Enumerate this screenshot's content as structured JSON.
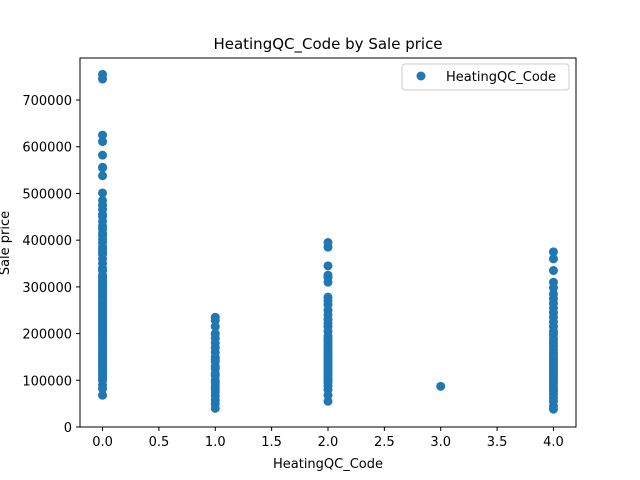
{
  "chart_data": {
    "type": "scatter",
    "title": "HeatingQC_Code by Sale price",
    "xlabel": "HeatingQC_Code",
    "ylabel": "Sale price",
    "xlim": [
      -0.2,
      4.2
    ],
    "ylim": [
      0,
      790000
    ],
    "xticks": [
      0.0,
      0.5,
      1.0,
      1.5,
      2.0,
      2.5,
      3.0,
      3.5,
      4.0
    ],
    "xtick_labels": [
      "0.0",
      "0.5",
      "1.0",
      "1.5",
      "2.0",
      "2.5",
      "3.0",
      "3.5",
      "4.0"
    ],
    "yticks": [
      0,
      100000,
      200000,
      300000,
      400000,
      500000,
      600000,
      700000
    ],
    "ytick_labels": [
      "0",
      "100000",
      "200000",
      "300000",
      "400000",
      "500000",
      "600000",
      "700000"
    ],
    "grid": false,
    "legend": {
      "position": "top-right",
      "entries": [
        "HeatingQC_Code"
      ]
    },
    "series": [
      {
        "name": "HeatingQC_Code",
        "color": "#1f77b4",
        "points": [
          [
            0,
            755000
          ],
          [
            0,
            745000
          ],
          [
            0,
            625000
          ],
          [
            0,
            611000
          ],
          [
            0,
            582000
          ],
          [
            0,
            556000
          ],
          [
            0,
            555000
          ],
          [
            0,
            538000
          ],
          [
            0,
            501000
          ],
          [
            0,
            485000
          ],
          [
            0,
            475000
          ],
          [
            0,
            466000
          ],
          [
            0,
            455000
          ],
          [
            0,
            451000
          ],
          [
            0,
            440000
          ],
          [
            0,
            430000
          ],
          [
            0,
            424000
          ],
          [
            0,
            415000
          ],
          [
            0,
            410000
          ],
          [
            0,
            402000
          ],
          [
            0,
            395000
          ],
          [
            0,
            386000
          ],
          [
            0,
            380000
          ],
          [
            0,
            375000
          ],
          [
            0,
            370000
          ],
          [
            0,
            360000
          ],
          [
            0,
            350000
          ],
          [
            0,
            340000
          ],
          [
            0,
            335000
          ],
          [
            0,
            325000
          ],
          [
            0,
            320000
          ],
          [
            0,
            315000
          ],
          [
            0,
            310000
          ],
          [
            0,
            305000
          ],
          [
            0,
            300000
          ],
          [
            0,
            295000
          ],
          [
            0,
            290000
          ],
          [
            0,
            285000
          ],
          [
            0,
            280000
          ],
          [
            0,
            275000
          ],
          [
            0,
            270000
          ],
          [
            0,
            265000
          ],
          [
            0,
            260000
          ],
          [
            0,
            255000
          ],
          [
            0,
            250000
          ],
          [
            0,
            245000
          ],
          [
            0,
            240000
          ],
          [
            0,
            235000
          ],
          [
            0,
            230000
          ],
          [
            0,
            225000
          ],
          [
            0,
            220000
          ],
          [
            0,
            215000
          ],
          [
            0,
            210000
          ],
          [
            0,
            205000
          ],
          [
            0,
            200000
          ],
          [
            0,
            195000
          ],
          [
            0,
            190000
          ],
          [
            0,
            185000
          ],
          [
            0,
            180000
          ],
          [
            0,
            175000
          ],
          [
            0,
            170000
          ],
          [
            0,
            165000
          ],
          [
            0,
            160000
          ],
          [
            0,
            155000
          ],
          [
            0,
            150000
          ],
          [
            0,
            145000
          ],
          [
            0,
            140000
          ],
          [
            0,
            135000
          ],
          [
            0,
            130000
          ],
          [
            0,
            125000
          ],
          [
            0,
            120000
          ],
          [
            0,
            115000
          ],
          [
            0,
            110000
          ],
          [
            0,
            105000
          ],
          [
            0,
            100000
          ],
          [
            0,
            90000
          ],
          [
            0,
            82000
          ],
          [
            0,
            68000
          ],
          [
            1,
            235000
          ],
          [
            1,
            228000
          ],
          [
            1,
            215000
          ],
          [
            1,
            200000
          ],
          [
            1,
            190000
          ],
          [
            1,
            180000
          ],
          [
            1,
            170000
          ],
          [
            1,
            160000
          ],
          [
            1,
            150000
          ],
          [
            1,
            145000
          ],
          [
            1,
            140000
          ],
          [
            1,
            130000
          ],
          [
            1,
            125000
          ],
          [
            1,
            115000
          ],
          [
            1,
            110000
          ],
          [
            1,
            100000
          ],
          [
            1,
            95000
          ],
          [
            1,
            88000
          ],
          [
            1,
            82000
          ],
          [
            1,
            75000
          ],
          [
            1,
            67000
          ],
          [
            1,
            58000
          ],
          [
            1,
            50000
          ],
          [
            1,
            40000
          ],
          [
            2,
            395000
          ],
          [
            2,
            385000
          ],
          [
            2,
            345000
          ],
          [
            2,
            325000
          ],
          [
            2,
            320000
          ],
          [
            2,
            310000
          ],
          [
            2,
            278000
          ],
          [
            2,
            270000
          ],
          [
            2,
            262000
          ],
          [
            2,
            250000
          ],
          [
            2,
            240000
          ],
          [
            2,
            230000
          ],
          [
            2,
            222000
          ],
          [
            2,
            215000
          ],
          [
            2,
            205000
          ],
          [
            2,
            195000
          ],
          [
            2,
            190000
          ],
          [
            2,
            185000
          ],
          [
            2,
            180000
          ],
          [
            2,
            175000
          ],
          [
            2,
            170000
          ],
          [
            2,
            165000
          ],
          [
            2,
            160000
          ],
          [
            2,
            155000
          ],
          [
            2,
            150000
          ],
          [
            2,
            145000
          ],
          [
            2,
            140000
          ],
          [
            2,
            135000
          ],
          [
            2,
            130000
          ],
          [
            2,
            125000
          ],
          [
            2,
            120000
          ],
          [
            2,
            115000
          ],
          [
            2,
            110000
          ],
          [
            2,
            105000
          ],
          [
            2,
            100000
          ],
          [
            2,
            95000
          ],
          [
            2,
            88000
          ],
          [
            2,
            80000
          ],
          [
            2,
            68000
          ],
          [
            2,
            55000
          ],
          [
            3,
            87000
          ],
          [
            4,
            375000
          ],
          [
            4,
            360000
          ],
          [
            4,
            335000
          ],
          [
            4,
            310000
          ],
          [
            4,
            298000
          ],
          [
            4,
            285000
          ],
          [
            4,
            275000
          ],
          [
            4,
            265000
          ],
          [
            4,
            255000
          ],
          [
            4,
            245000
          ],
          [
            4,
            235000
          ],
          [
            4,
            225000
          ],
          [
            4,
            215000
          ],
          [
            4,
            205000
          ],
          [
            4,
            198000
          ],
          [
            4,
            190000
          ],
          [
            4,
            184000
          ],
          [
            4,
            178000
          ],
          [
            4,
            172000
          ],
          [
            4,
            166000
          ],
          [
            4,
            160000
          ],
          [
            4,
            155000
          ],
          [
            4,
            150000
          ],
          [
            4,
            145000
          ],
          [
            4,
            140000
          ],
          [
            4,
            135000
          ],
          [
            4,
            130000
          ],
          [
            4,
            125000
          ],
          [
            4,
            120000
          ],
          [
            4,
            115000
          ],
          [
            4,
            110000
          ],
          [
            4,
            105000
          ],
          [
            4,
            100000
          ],
          [
            4,
            94000
          ],
          [
            4,
            88000
          ],
          [
            4,
            82000
          ],
          [
            4,
            76000
          ],
          [
            4,
            70000
          ],
          [
            4,
            62000
          ],
          [
            4,
            55000
          ],
          [
            4,
            45000
          ],
          [
            4,
            38000
          ]
        ]
      }
    ]
  }
}
